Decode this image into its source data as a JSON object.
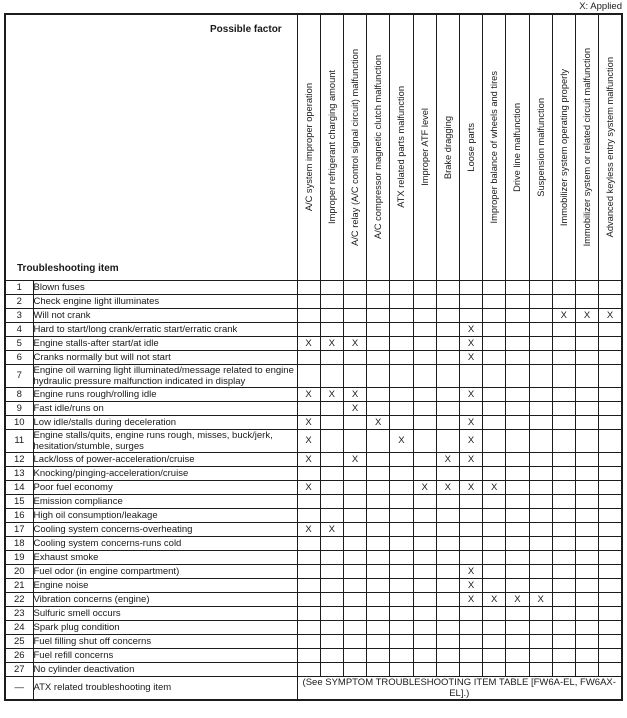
{
  "legend": "X: Applied",
  "mark": "X",
  "header": {
    "possible_factor": "Possible factor",
    "troubleshooting_item": "Troubleshooting item"
  },
  "factors": [
    "A/C system improper operation",
    "Improper refrigerant charging amount",
    "A/C relay (A/C control signal circuit) malfunction",
    "A/C compressor magnetic clutch malfunction",
    "ATX related parts malfunction",
    "Improper ATF level",
    "Brake dragging",
    "Loose parts",
    "Improper balance of wheels and tires",
    "Drive line malfunction",
    "Suspension malfunction",
    "Immobilizer system operating properly",
    "Immobilizer system or related circuit malfunction",
    "Advanced keyless entry system malfunction"
  ],
  "rows": [
    {
      "num": "1",
      "item": "Blown fuses",
      "marks": []
    },
    {
      "num": "2",
      "item": "Check engine light illuminates",
      "marks": []
    },
    {
      "num": "3",
      "item": "Will not crank",
      "marks": [
        12,
        13,
        14
      ]
    },
    {
      "num": "4",
      "item": "Hard to start/long crank/erratic start/erratic crank",
      "marks": [
        8
      ]
    },
    {
      "num": "5",
      "item": "Engine stalls-after start/at idle",
      "marks": [
        1,
        2,
        3,
        8
      ]
    },
    {
      "num": "6",
      "item": "Cranks normally but will not start",
      "marks": [
        8
      ]
    },
    {
      "num": "7",
      "item": "Engine oil warning light illuminated/message related to engine hydraulic pressure malfunction indicated in display",
      "marks": []
    },
    {
      "num": "8",
      "item": "Engine runs rough/rolling idle",
      "marks": [
        1,
        2,
        3,
        8
      ]
    },
    {
      "num": "9",
      "item": "Fast idle/runs on",
      "marks": [
        3
      ]
    },
    {
      "num": "10",
      "item": "Low idle/stalls during deceleration",
      "marks": [
        1,
        4,
        8
      ]
    },
    {
      "num": "11",
      "item": "Engine stalls/quits, engine runs rough, misses, buck/jerk, hesitation/stumble, surges",
      "marks": [
        1,
        5,
        8
      ]
    },
    {
      "num": "12",
      "item": "Lack/loss of power-acceleration/cruise",
      "marks": [
        1,
        3,
        7,
        8
      ]
    },
    {
      "num": "13",
      "item": "Knocking/pinging-acceleration/cruise",
      "marks": []
    },
    {
      "num": "14",
      "item": "Poor fuel economy",
      "marks": [
        1,
        6,
        7,
        8,
        9
      ]
    },
    {
      "num": "15",
      "item": "Emission compliance",
      "marks": []
    },
    {
      "num": "16",
      "item": "High oil consumption/leakage",
      "marks": []
    },
    {
      "num": "17",
      "item": "Cooling system concerns-overheating",
      "marks": [
        1,
        2
      ]
    },
    {
      "num": "18",
      "item": "Cooling system concerns-runs cold",
      "marks": []
    },
    {
      "num": "19",
      "item": "Exhaust smoke",
      "marks": []
    },
    {
      "num": "20",
      "item": "Fuel odor (in engine compartment)",
      "marks": [
        8
      ]
    },
    {
      "num": "21",
      "item": "Engine noise",
      "marks": [
        8
      ]
    },
    {
      "num": "22",
      "item": "Vibration concerns (engine)",
      "marks": [
        8,
        9,
        10,
        11
      ]
    },
    {
      "num": "23",
      "item": "Sulfuric smell occurs",
      "marks": []
    },
    {
      "num": "24",
      "item": "Spark plug condition",
      "marks": []
    },
    {
      "num": "25",
      "item": "Fuel filling shut off concerns",
      "marks": []
    },
    {
      "num": "26",
      "item": "Fuel refill concerns",
      "marks": []
    },
    {
      "num": "27",
      "item": "No cylinder deactivation",
      "marks": []
    }
  ],
  "footer_row": {
    "num": "—",
    "item": "ATX related troubleshooting item",
    "note": "(See SYMPTOM TROUBLESHOOTING ITEM TABLE [FW6A-EL, FW6AX-EL].)"
  },
  "colors": {
    "border": "#1c1c1c",
    "text": "#1a1a1a",
    "background": "#ffffff"
  }
}
